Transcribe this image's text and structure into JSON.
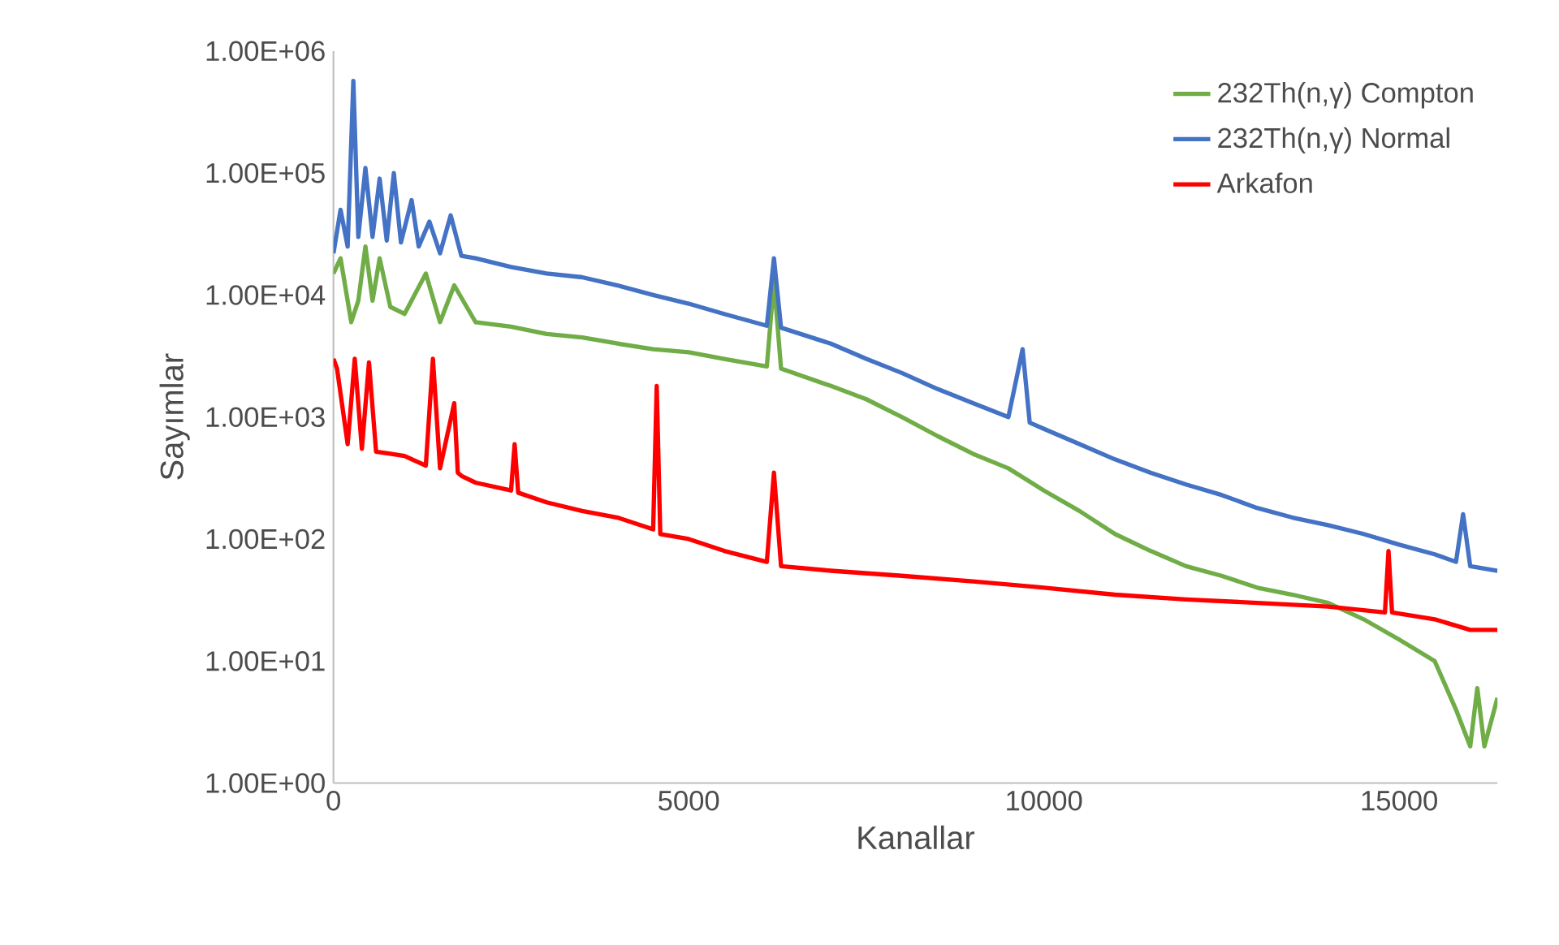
{
  "chart_data": {
    "type": "line",
    "xlabel": "Kanallar",
    "ylabel": "Sayımlar",
    "log": "y",
    "legend": "top right",
    "grid": false,
    "marker": "none",
    "line_style": "solid",
    "xlim": [
      0,
      16384
    ],
    "ylim": [
      1,
      1000000
    ],
    "xticks": [
      0,
      5000,
      10000,
      15000
    ],
    "yticks": [
      {
        "value": 1,
        "label": "1.00E+00"
      },
      {
        "value": 10,
        "label": "1.00E+01"
      },
      {
        "value": 100,
        "label": "1.00E+02"
      },
      {
        "value": 1000,
        "label": "1.00E+03"
      },
      {
        "value": 10000,
        "label": "1.00E+04"
      },
      {
        "value": 100000,
        "label": "1.00E+05"
      },
      {
        "value": 1000000,
        "label": "1.00E+06"
      }
    ],
    "series": [
      {
        "name": "232Th(n,γ) Compton",
        "color": "#70ad47",
        "x": [
          0,
          100,
          250,
          350,
          450,
          550,
          650,
          800,
          1000,
          1300,
          1500,
          1700,
          2000,
          2500,
          3000,
          3500,
          4000,
          4500,
          5000,
          5500,
          6100,
          6200,
          6300,
          7000,
          7500,
          8000,
          8500,
          9000,
          9500,
          10000,
          10500,
          11000,
          11500,
          12000,
          12500,
          13000,
          13500,
          14000,
          14500,
          15000,
          15500,
          15800,
          16000,
          16100,
          16200,
          16384
        ],
        "values": [
          15000,
          20000,
          6000,
          9000,
          25000,
          9000,
          20000,
          8000,
          7000,
          15000,
          6000,
          12000,
          6000,
          5500,
          4800,
          4500,
          4000,
          3600,
          3400,
          3000,
          2600,
          13000,
          2500,
          1800,
          1400,
          1000,
          700,
          500,
          380,
          250,
          170,
          110,
          80,
          60,
          50,
          40,
          35,
          30,
          22,
          15,
          10,
          4,
          2,
          6,
          2,
          5
        ]
      },
      {
        "name": "232Th(n,γ) Normal",
        "color": "#4472c4",
        "x": [
          0,
          100,
          200,
          280,
          350,
          450,
          550,
          650,
          750,
          850,
          950,
          1100,
          1200,
          1350,
          1500,
          1650,
          1800,
          2000,
          2500,
          3000,
          3500,
          4000,
          4500,
          5000,
          5500,
          6100,
          6200,
          6300,
          7000,
          7500,
          8000,
          8500,
          9000,
          9500,
          9700,
          9800,
          10000,
          10500,
          11000,
          11500,
          12000,
          12500,
          13000,
          13500,
          14000,
          14500,
          15000,
          15500,
          15800,
          15900,
          16000,
          16384
        ],
        "values": [
          22000,
          50000,
          25000,
          570000,
          30000,
          110000,
          30000,
          90000,
          28000,
          100000,
          27000,
          60000,
          25000,
          40000,
          22000,
          45000,
          21000,
          20000,
          17000,
          15000,
          14000,
          12000,
          10000,
          8500,
          7000,
          5600,
          20000,
          5400,
          4000,
          3000,
          2300,
          1700,
          1300,
          1000,
          3600,
          900,
          800,
          600,
          450,
          350,
          280,
          230,
          180,
          150,
          130,
          110,
          90,
          75,
          65,
          160,
          60,
          55
        ]
      },
      {
        "name": "Arkafon",
        "color": "#ff0000",
        "x": [
          0,
          50,
          200,
          300,
          400,
          500,
          600,
          800,
          1000,
          1300,
          1400,
          1500,
          1700,
          1750,
          1800,
          2000,
          2500,
          2550,
          2600,
          3000,
          3500,
          4000,
          4500,
          4550,
          4600,
          5000,
          5500,
          6100,
          6200,
          6300,
          7000,
          8000,
          9000,
          10000,
          11000,
          12000,
          13000,
          14000,
          14800,
          14850,
          14900,
          15500,
          16000,
          16384
        ],
        "values": [
          3000,
          2500,
          600,
          3000,
          550,
          2800,
          520,
          500,
          480,
          400,
          3000,
          380,
          1300,
          350,
          330,
          290,
          250,
          600,
          240,
          200,
          170,
          150,
          120,
          1800,
          110,
          100,
          80,
          65,
          350,
          60,
          55,
          50,
          45,
          40,
          35,
          32,
          30,
          28,
          25,
          80,
          25,
          22,
          18,
          18
        ]
      }
    ]
  }
}
